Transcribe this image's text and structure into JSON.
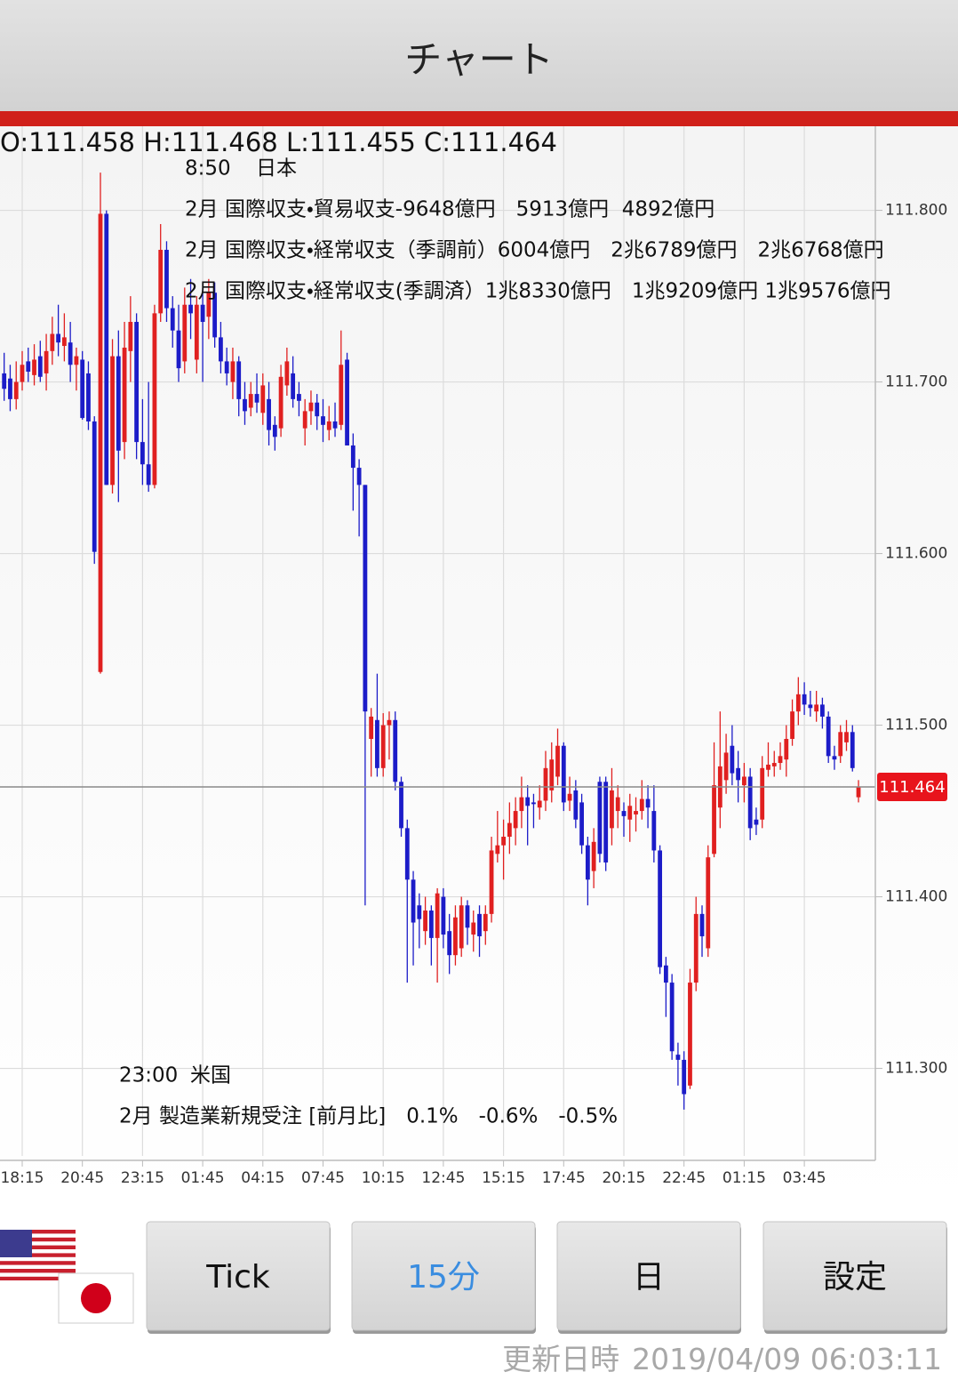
{
  "header": {
    "title": "チャート"
  },
  "chart_data": {
    "type": "candlestick",
    "ohlc_text": "O:111.458 H:111.468 L:111.455 C:111.464",
    "up_color": "#e02020",
    "down_color": "#1c1cc8",
    "ylim": [
      111.249,
      111.849
    ],
    "yticks": [
      {
        "value": 111.3,
        "label": "111.300"
      },
      {
        "value": 111.4,
        "label": "111.400"
      },
      {
        "value": 111.5,
        "label": "111.500"
      },
      {
        "value": 111.6,
        "label": "111.600"
      },
      {
        "value": 111.7,
        "label": "111.700"
      },
      {
        "value": 111.8,
        "label": "111.800"
      }
    ],
    "grid": true,
    "last_price": 111.464,
    "categories": [
      null,
      null,
      null,
      "18:15",
      null,
      null,
      null,
      null,
      null,
      null,
      null,
      null,
      null,
      "20:45",
      null,
      null,
      null,
      null,
      null,
      null,
      null,
      null,
      null,
      "23:15",
      null,
      null,
      null,
      null,
      null,
      null,
      null,
      null,
      null,
      "01:45",
      null,
      null,
      null,
      null,
      null,
      null,
      null,
      null,
      null,
      "04:15",
      null,
      null,
      null,
      null,
      null,
      null,
      null,
      null,
      null,
      "07:45",
      null,
      null,
      null,
      null,
      null,
      null,
      null,
      null,
      null,
      "10:15",
      null,
      null,
      null,
      null,
      null,
      null,
      null,
      null,
      null,
      "12:45",
      null,
      null,
      null,
      null,
      null,
      null,
      null,
      null,
      null,
      "15:15",
      null,
      null,
      null,
      null,
      null,
      null,
      null,
      null,
      null,
      "17:45",
      null,
      null,
      null,
      null,
      null,
      null,
      null,
      null,
      null,
      "20:15",
      null,
      null,
      null,
      null,
      null,
      null,
      null,
      null,
      null,
      "22:45",
      null,
      null,
      null,
      null,
      null,
      null,
      null,
      null,
      null,
      "01:15",
      null,
      null,
      null,
      null,
      null,
      null,
      null,
      null,
      null,
      "03:45",
      null,
      null,
      null,
      null,
      null,
      null,
      null,
      null,
      null
    ],
    "open": [
      111.705,
      111.702,
      111.69,
      111.7,
      111.712,
      111.704,
      111.715,
      111.705,
      111.718,
      111.728,
      111.721,
      111.723,
      111.71,
      111.713,
      111.705,
      111.677,
      111.531,
      111.798,
      111.64,
      111.715,
      111.665,
      111.718,
      111.735,
      111.665,
      111.652,
      111.64,
      111.74,
      111.777,
      111.743,
      111.73,
      111.712,
      111.745,
      111.713,
      111.745,
      111.738,
      111.752,
      111.726,
      111.712,
      111.7,
      111.712,
      111.69,
      111.685,
      111.693,
      111.682,
      111.69,
      111.675,
      111.673,
      111.698,
      111.705,
      111.693,
      111.673,
      111.683,
      111.688,
      111.68,
      111.672,
      111.677,
      111.675,
      111.713,
      111.663,
      111.65,
      111.64,
      111.492,
      111.503,
      111.475,
      111.5,
      111.503,
      111.467,
      111.44,
      111.41,
      111.395,
      111.38,
      111.392,
      111.376,
      111.4,
      111.38,
      111.366,
      111.37,
      111.395,
      111.378,
      111.39,
      111.38,
      111.39,
      111.425,
      111.43,
      111.435,
      111.44,
      111.45,
      111.458,
      111.455,
      111.452,
      111.456,
      111.462,
      111.47,
      111.488,
      111.456,
      111.462,
      111.455,
      111.43,
      111.415,
      111.467,
      111.467,
      111.44,
      111.45,
      111.45,
      111.445,
      111.448,
      111.45,
      111.457,
      111.45,
      111.427,
      111.36,
      111.35,
      111.308,
      111.305,
      111.29,
      111.35,
      111.39,
      111.37,
      111.425,
      111.452,
      111.468,
      111.488,
      111.475,
      111.465,
      111.47,
      111.445,
      111.445,
      111.474,
      111.476,
      111.478,
      111.48,
      111.492,
      111.508,
      111.518,
      111.512,
      111.508,
      111.512,
      111.505,
      111.482,
      111.482,
      111.49,
      111.496,
      111.458
    ],
    "high": [
      111.717,
      111.71,
      111.712,
      111.718,
      111.72,
      111.722,
      111.724,
      111.728,
      111.738,
      111.745,
      111.74,
      111.735,
      111.72,
      111.718,
      111.712,
      111.68,
      111.822,
      111.8,
      111.725,
      111.73,
      111.735,
      111.75,
      111.74,
      111.69,
      111.7,
      111.745,
      111.792,
      111.782,
      111.75,
      111.745,
      111.755,
      111.76,
      111.75,
      111.755,
      111.76,
      111.758,
      111.735,
      111.72,
      111.72,
      111.715,
      111.7,
      111.7,
      111.705,
      111.705,
      111.7,
      111.68,
      111.71,
      111.72,
      111.715,
      111.7,
      111.69,
      111.695,
      111.693,
      111.69,
      111.686,
      111.688,
      111.73,
      111.717,
      111.67,
      111.655,
      111.64,
      111.51,
      111.53,
      111.507,
      111.508,
      111.508,
      111.47,
      111.445,
      111.415,
      111.402,
      111.4,
      111.395,
      111.405,
      111.405,
      111.39,
      111.395,
      111.4,
      111.398,
      111.392,
      111.395,
      111.395,
      111.435,
      111.45,
      111.445,
      111.455,
      111.458,
      111.47,
      111.465,
      111.46,
      111.465,
      111.485,
      111.49,
      111.498,
      111.49,
      111.47,
      111.468,
      111.46,
      111.435,
      111.44,
      111.47,
      111.47,
      111.475,
      111.465,
      111.455,
      111.46,
      111.458,
      111.468,
      111.465,
      111.465,
      111.43,
      111.365,
      111.355,
      111.315,
      111.31,
      111.358,
      111.4,
      111.395,
      111.43,
      111.49,
      111.508,
      111.495,
      111.5,
      111.485,
      111.478,
      111.475,
      111.452,
      111.482,
      111.49,
      111.485,
      111.49,
      111.5,
      111.515,
      111.528,
      111.525,
      111.52,
      111.52,
      111.516,
      111.508,
      111.488,
      111.5,
      111.503,
      111.5,
      111.468
    ],
    "low": [
      111.689,
      111.683,
      111.684,
      111.695,
      111.7,
      111.698,
      111.7,
      111.695,
      111.71,
      111.715,
      111.712,
      111.7,
      111.695,
      111.678,
      111.672,
      111.594,
      111.53,
      111.64,
      111.635,
      111.63,
      111.655,
      111.7,
      111.655,
      111.64,
      111.636,
      111.638,
      111.735,
      111.735,
      111.72,
      111.7,
      111.705,
      111.725,
      111.705,
      111.7,
      111.725,
      111.72,
      111.705,
      111.698,
      111.69,
      111.68,
      111.675,
      111.68,
      111.682,
      111.675,
      111.663,
      111.66,
      111.668,
      111.692,
      111.685,
      111.68,
      111.663,
      111.675,
      111.672,
      111.665,
      111.666,
      111.668,
      111.672,
      111.663,
      111.625,
      111.61,
      111.395,
      111.47,
      111.47,
      111.47,
      111.48,
      111.462,
      111.435,
      111.35,
      111.36,
      111.37,
      111.372,
      111.36,
      111.35,
      111.37,
      111.355,
      111.36,
      111.365,
      111.372,
      111.368,
      111.365,
      111.372,
      111.385,
      111.42,
      111.41,
      111.425,
      111.43,
      111.44,
      111.43,
      111.44,
      111.445,
      111.45,
      111.455,
      111.465,
      111.45,
      111.45,
      111.44,
      111.425,
      111.395,
      111.405,
      111.42,
      111.415,
      111.43,
      111.44,
      111.435,
      111.432,
      111.438,
      111.445,
      111.44,
      111.42,
      111.355,
      111.33,
      111.305,
      111.29,
      111.276,
      111.288,
      111.345,
      111.365,
      111.365,
      111.423,
      111.44,
      111.46,
      111.465,
      111.455,
      111.455,
      111.433,
      111.436,
      111.44,
      111.47,
      111.47,
      111.474,
      111.47,
      111.488,
      111.5,
      111.506,
      111.505,
      111.502,
      111.498,
      111.478,
      111.474,
      111.478,
      111.485,
      111.473,
      111.455
    ],
    "close": [
      111.696,
      111.69,
      111.7,
      111.71,
      111.706,
      111.713,
      111.703,
      111.718,
      111.728,
      111.723,
      111.726,
      111.71,
      111.715,
      111.679,
      111.677,
      111.601,
      111.798,
      111.64,
      111.715,
      111.66,
      111.72,
      111.735,
      111.665,
      111.652,
      111.64,
      111.74,
      111.777,
      111.743,
      111.73,
      111.708,
      111.745,
      111.74,
      111.745,
      111.735,
      111.752,
      111.726,
      111.712,
      111.705,
      111.712,
      111.69,
      111.683,
      111.693,
      111.688,
      111.698,
      111.672,
      111.668,
      111.703,
      111.712,
      111.69,
      111.689,
      111.683,
      111.688,
      111.68,
      111.675,
      111.677,
      111.673,
      111.71,
      111.663,
      111.65,
      111.64,
      111.508,
      111.505,
      111.475,
      111.5,
      111.503,
      111.467,
      111.44,
      111.41,
      111.385,
      111.387,
      111.392,
      111.376,
      111.402,
      111.378,
      111.366,
      111.388,
      111.395,
      111.382,
      111.385,
      111.377,
      111.39,
      111.427,
      111.43,
      111.435,
      111.443,
      111.45,
      111.458,
      111.453,
      111.454,
      111.456,
      111.475,
      111.48,
      111.488,
      111.455,
      111.46,
      111.445,
      111.43,
      111.41,
      111.432,
      111.425,
      111.42,
      111.462,
      111.458,
      111.447,
      111.453,
      111.45,
      111.457,
      111.452,
      111.427,
      111.359,
      111.35,
      111.31,
      111.305,
      111.285,
      111.35,
      111.39,
      111.377,
      111.423,
      111.465,
      111.476,
      111.484,
      111.472,
      111.468,
      111.47,
      111.44,
      111.442,
      111.475,
      111.477,
      111.478,
      111.482,
      111.492,
      111.508,
      111.518,
      111.512,
      111.51,
      111.512,
      111.505,
      111.482,
      111.48,
      111.496,
      111.496,
      111.475,
      111.464
    ],
    "events": [
      {
        "time": "8:50",
        "country": "日本",
        "lines": [
          "2月 国際収支・貿易収支-9648億円　5913億円  4892億円",
          "2月 国際収支・経常収支（季調前）6004億円　2兆6789億円　2兆6768億円",
          "2月 国際収支・経常収支(季調済）1兆8330億円　1兆9209億円 1兆9576億円"
        ]
      },
      {
        "time": "23:00",
        "country": "米国",
        "lines": [
          "2月 製造業新規受注 [前月比]　0.1%　-0.6%　-0.5%"
        ]
      }
    ]
  },
  "buttons": [
    {
      "label": "Tick",
      "selected": false
    },
    {
      "label": "15分",
      "selected": true
    },
    {
      "label": "日",
      "selected": false
    },
    {
      "label": "設定",
      "selected": false
    }
  ],
  "footer": {
    "label": "更新日時",
    "timestamp": "2019/04/09 06:03:11"
  }
}
